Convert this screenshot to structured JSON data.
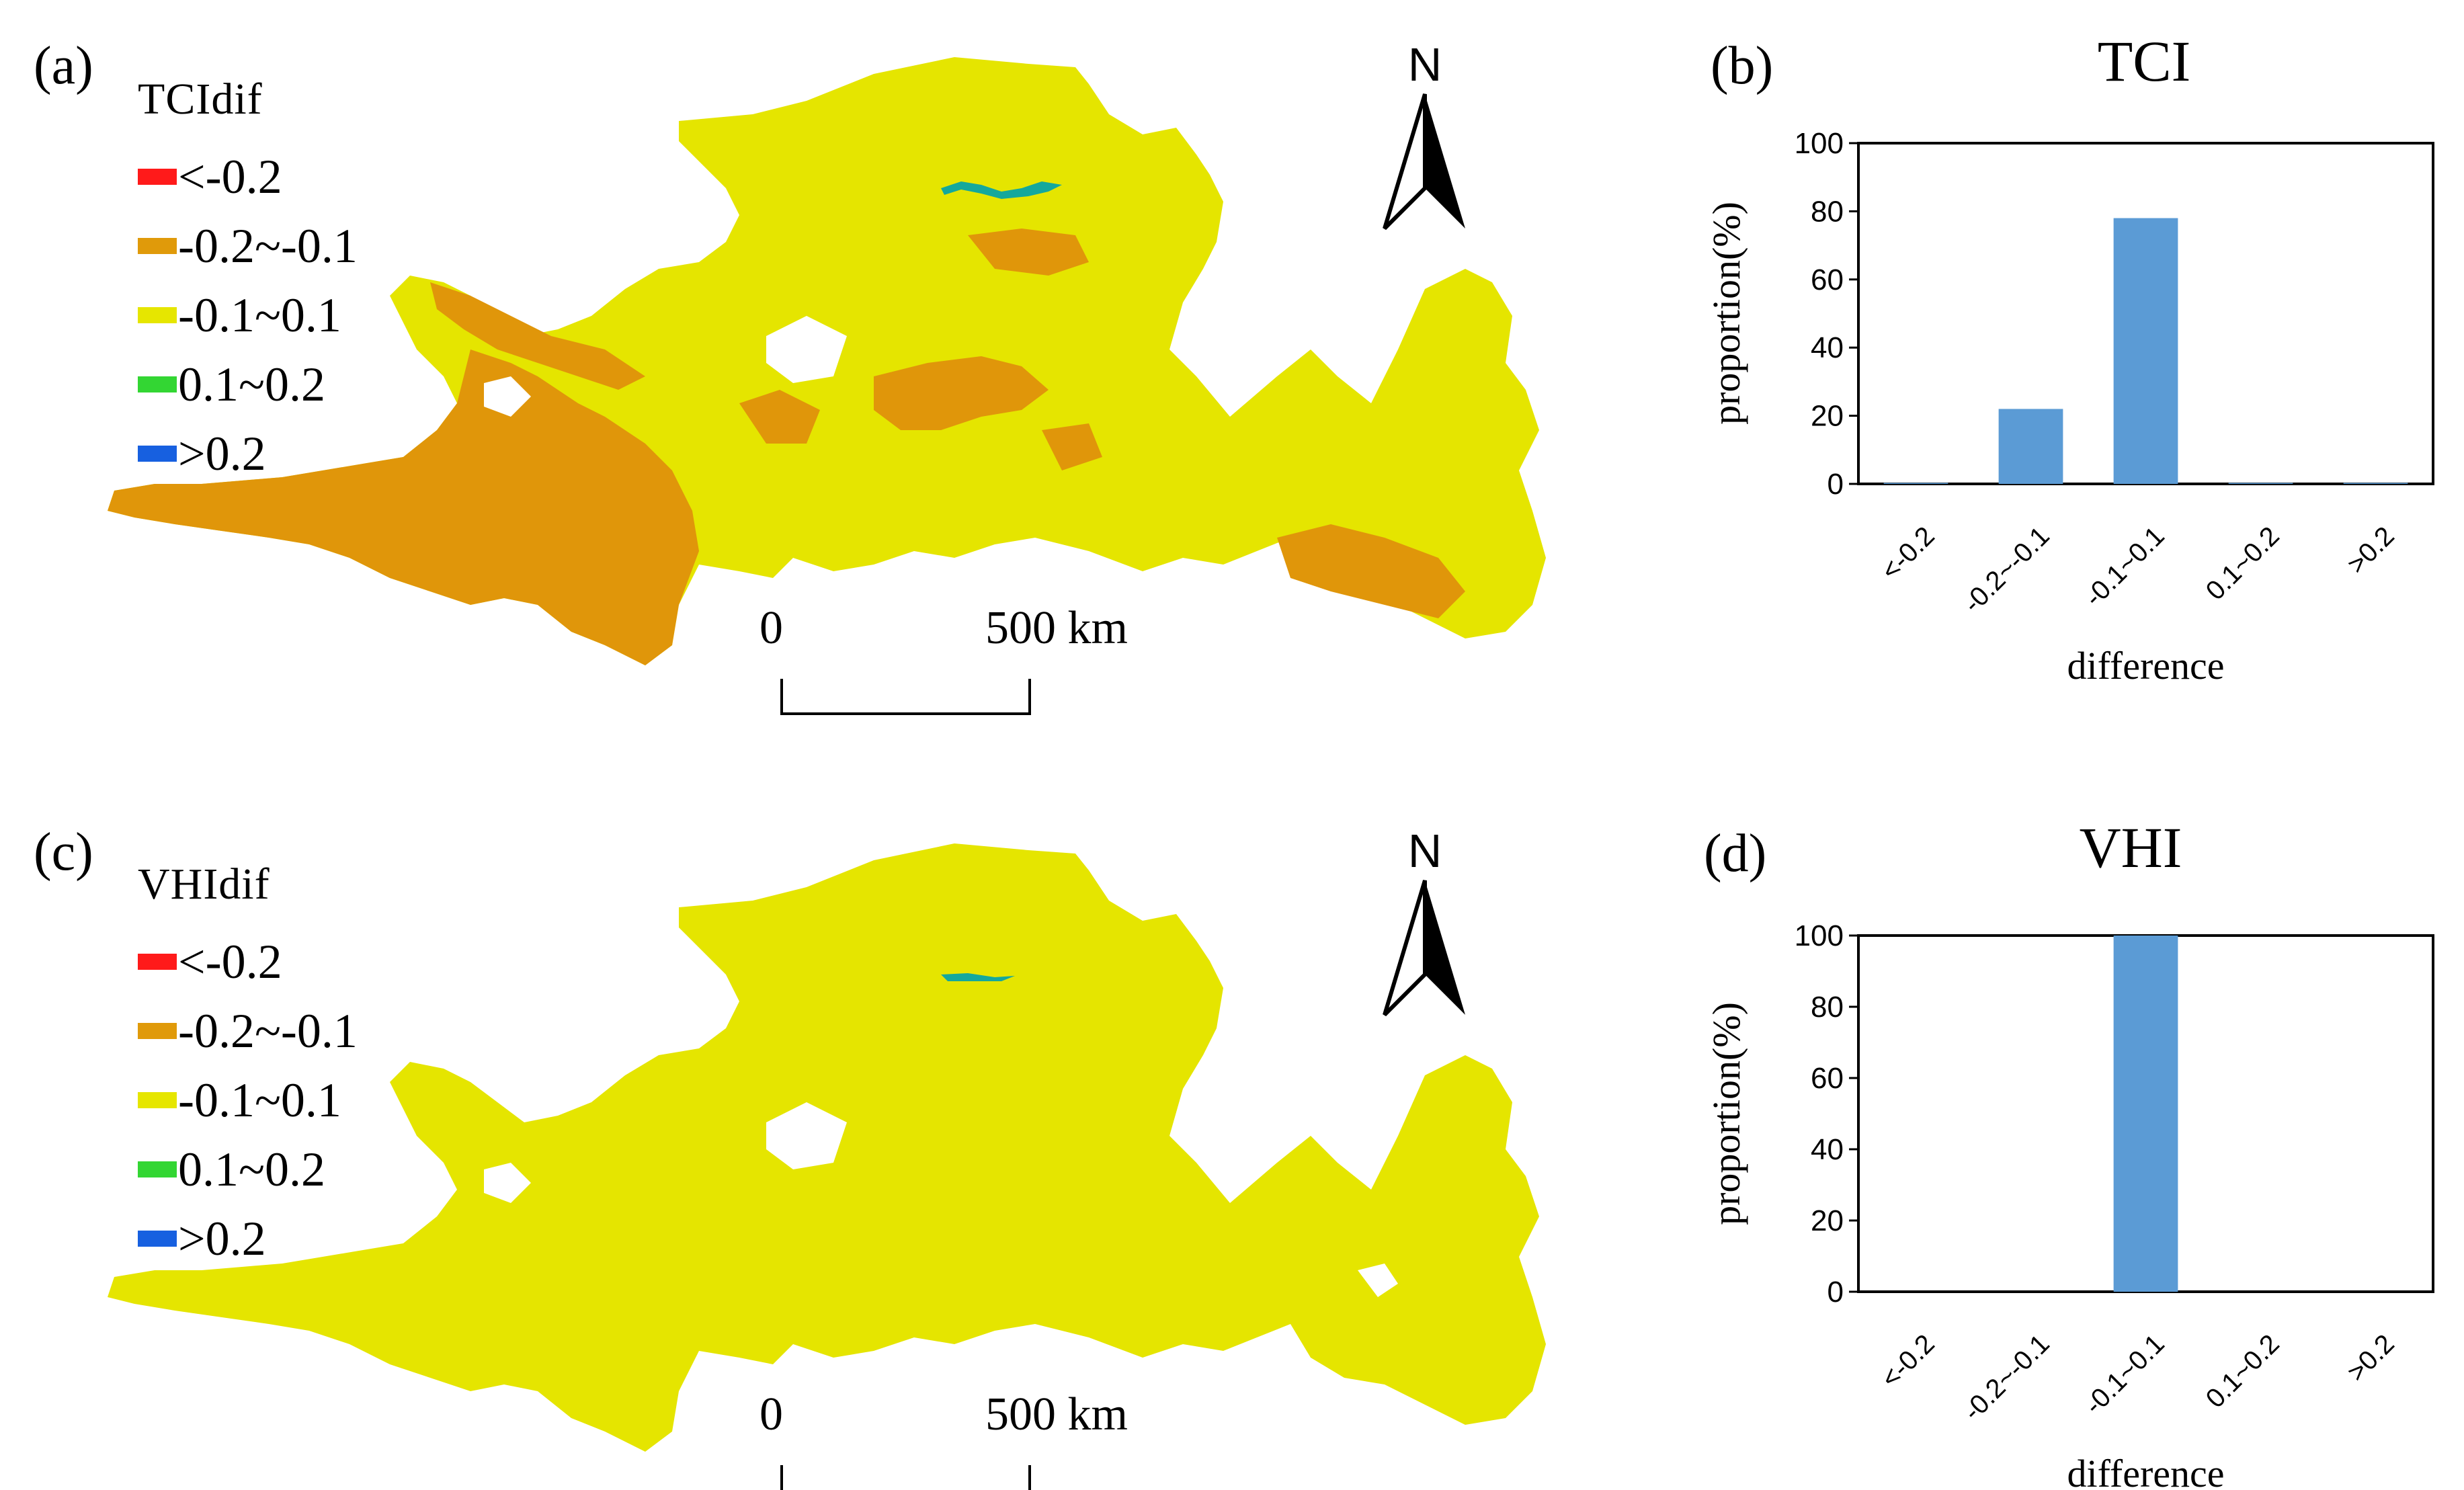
{
  "panels": {
    "a": {
      "label": "(a)",
      "legend_title": "TCIdif"
    },
    "b": {
      "label": "(b)"
    },
    "c": {
      "label": "(c)",
      "legend_title": "VHIdif"
    },
    "d": {
      "label": "(d)"
    }
  },
  "legend_items": [
    {
      "label": "<-0.2",
      "color": "#ff1a1a"
    },
    {
      "label": "-0.2~-0.1",
      "color": "#e09a0a"
    },
    {
      "label": "-0.1~0.1",
      "color": "#e6e600"
    },
    {
      "label": "0.1~0.2",
      "color": "#33d633"
    },
    {
      "label": ">0.2",
      "color": "#1760e0"
    }
  ],
  "map": {
    "north_label": "N",
    "scale_start": "0",
    "scale_end": "500 km",
    "colors": {
      "base": "#e5e500",
      "decrease": "#e0960a",
      "river": "#14a89c"
    }
  },
  "chart_data": [
    {
      "type": "bar",
      "title": "TCI",
      "xlabel": "difference",
      "ylabel": "proportion(%)",
      "categories": [
        "<-0.2",
        "-0.2~-0.1",
        "-0.1~0.1",
        "0.1~0.2",
        ">0.2"
      ],
      "values": [
        0.3,
        22,
        78,
        0.3,
        0.3
      ],
      "ylim": [
        0,
        100
      ],
      "yticks": [
        0,
        20,
        40,
        60,
        80,
        100
      ],
      "bar_color": "#5b9bd5"
    },
    {
      "type": "bar",
      "title": "VHI",
      "xlabel": "difference",
      "ylabel": "proportion(%)",
      "categories": [
        "<-0.2",
        "-0.2~-0.1",
        "-0.1~0.1",
        "0.1~0.2",
        ">0.2"
      ],
      "values": [
        0,
        0,
        100,
        0,
        0
      ],
      "ylim": [
        0,
        100
      ],
      "yticks": [
        0,
        20,
        40,
        60,
        80,
        100
      ],
      "bar_color": "#5b9bd5"
    }
  ]
}
